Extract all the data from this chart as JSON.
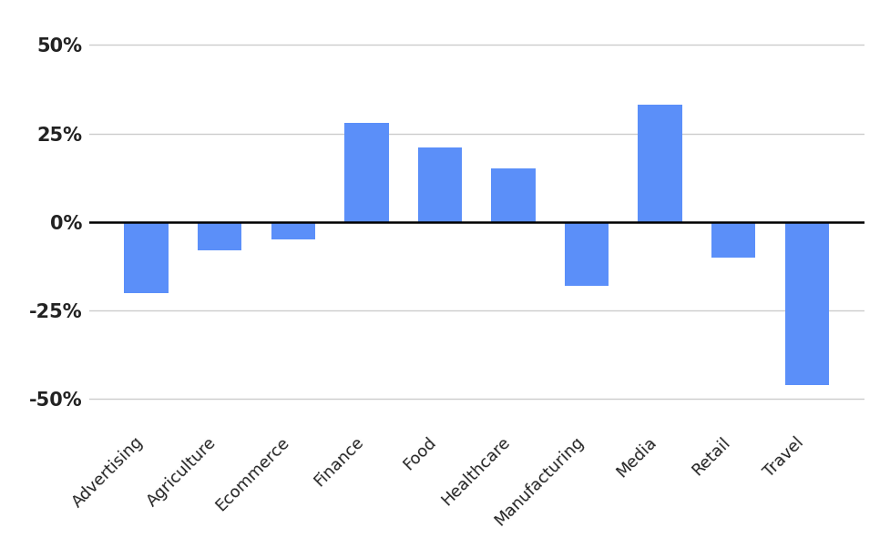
{
  "categories": [
    "Advertising",
    "Agriculture",
    "Ecommerce",
    "Finance",
    "Food",
    "Healthcare",
    "Manufacturing",
    "Media",
    "Retail",
    "Travel"
  ],
  "values": [
    -20,
    -8,
    -5,
    28,
    21,
    15,
    -18,
    33,
    -10,
    -46
  ],
  "bar_color": "#5B8FF9",
  "ylim": [
    -58,
    58
  ],
  "yticks": [
    -50,
    -25,
    0,
    25,
    50
  ],
  "ytick_labels": [
    "-50%",
    "-25%",
    "0%",
    "25%",
    "50%"
  ],
  "background_color": "#ffffff",
  "grid_color": "#cccccc",
  "bar_width": 0.6
}
